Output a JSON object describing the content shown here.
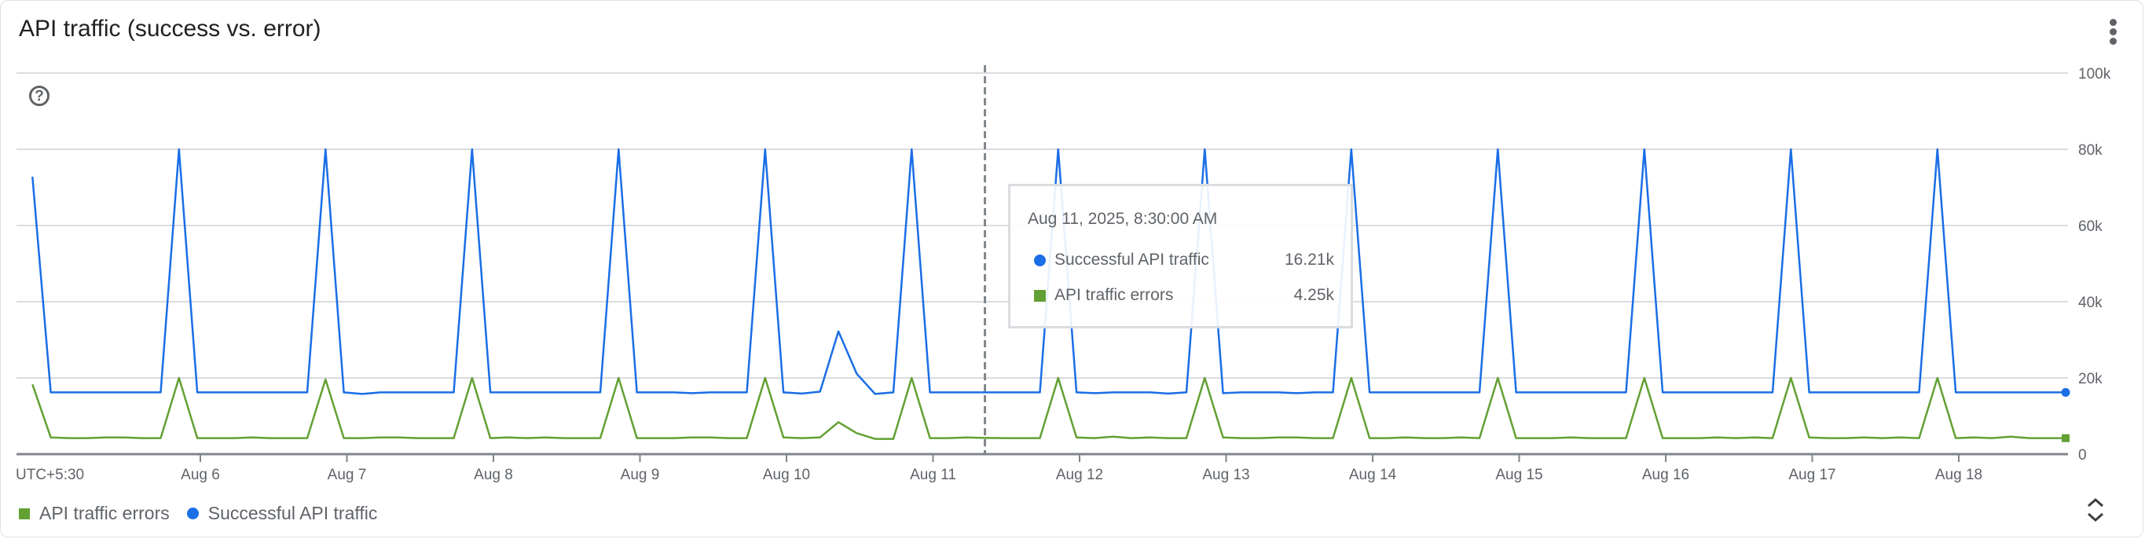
{
  "header": {
    "title": "API traffic (success vs. error)",
    "menu_icon": "more-vert-icon",
    "help_icon": "help-circle-icon"
  },
  "tooltip": {
    "date": "Aug 11, 2025, 8:30:00 AM",
    "rows": [
      {
        "label": "Successful API traffic",
        "value": "16.21k",
        "color": "#1a6ee6"
      },
      {
        "label": "API traffic errors",
        "value": "4.25k",
        "color": "#62a033"
      }
    ]
  },
  "legend": [
    {
      "label": "API traffic errors",
      "color": "#62a033",
      "marker": "square"
    },
    {
      "label": "Successful API traffic",
      "color": "#1a6ee6",
      "marker": "circle"
    }
  ],
  "expand_icon": "unfold-icon",
  "chart_data": {
    "type": "line",
    "title": "API traffic (success vs. error)",
    "timezone_label": "UTC+5:30",
    "x_start": "2025-08-04T20:30",
    "x_step_hours": 3,
    "x_ticks": [
      "Aug 6",
      "Aug 7",
      "Aug 8",
      "Aug 9",
      "Aug 10",
      "Aug 11",
      "Aug 12",
      "Aug 13",
      "Aug 14",
      "Aug 15",
      "Aug 16",
      "Aug 17",
      "Aug 18"
    ],
    "y_ticks": [
      "0",
      "20k",
      "40k",
      "60k",
      "80k",
      "100k"
    ],
    "ylim": [
      0,
      100000
    ],
    "y_axis_side": "right",
    "grid": true,
    "legend_position": "bottom-left",
    "hover_time": "2025-08-11T08:30",
    "series": [
      {
        "name": "Successful API traffic",
        "color": "#1a6ee6",
        "values": [
          72800,
          16200,
          16200,
          16200,
          16200,
          16200,
          16200,
          16200,
          80000,
          16200,
          16200,
          16200,
          16200,
          16200,
          16200,
          16200,
          80000,
          16200,
          15800,
          16200,
          16200,
          16200,
          16200,
          16200,
          80000,
          16200,
          16200,
          16200,
          16200,
          16200,
          16200,
          16200,
          80000,
          16200,
          16200,
          16200,
          16000,
          16200,
          16200,
          16200,
          80000,
          16200,
          15900,
          16400,
          32200,
          21100,
          15800,
          16200,
          80000,
          16200,
          16200,
          16200,
          16210,
          16200,
          16200,
          16200,
          80000,
          16200,
          16000,
          16200,
          16200,
          16200,
          15900,
          16200,
          80000,
          16000,
          16200,
          16200,
          16200,
          16000,
          16200,
          16200,
          80000,
          16200,
          16200,
          16200,
          16200,
          16200,
          16200,
          16200,
          80000,
          16200,
          16200,
          16200,
          16200,
          16200,
          16200,
          16200,
          80000,
          16200,
          16200,
          16200,
          16200,
          16200,
          16200,
          16200,
          80000,
          16200,
          16200,
          16200,
          16200,
          16200,
          16200,
          16200,
          80000,
          16200,
          16200,
          16200,
          16200,
          16200,
          16200,
          16200
        ]
      },
      {
        "name": "API traffic errors",
        "color": "#62a033",
        "values": [
          18300,
          4400,
          4200,
          4200,
          4400,
          4400,
          4200,
          4200,
          20000,
          4200,
          4200,
          4200,
          4400,
          4200,
          4200,
          4200,
          19600,
          4200,
          4200,
          4400,
          4400,
          4200,
          4200,
          4200,
          20000,
          4200,
          4400,
          4200,
          4400,
          4200,
          4200,
          4200,
          20000,
          4200,
          4200,
          4200,
          4400,
          4400,
          4200,
          4200,
          20000,
          4400,
          4200,
          4400,
          8400,
          5500,
          4000,
          4000,
          20000,
          4200,
          4200,
          4400,
          4250,
          4200,
          4200,
          4200,
          20000,
          4400,
          4200,
          4600,
          4200,
          4400,
          4200,
          4200,
          20000,
          4400,
          4200,
          4200,
          4400,
          4400,
          4200,
          4200,
          20000,
          4200,
          4200,
          4400,
          4200,
          4200,
          4400,
          4200,
          20000,
          4200,
          4200,
          4200,
          4400,
          4200,
          4200,
          4200,
          20000,
          4200,
          4200,
          4200,
          4400,
          4200,
          4400,
          4200,
          20000,
          4400,
          4200,
          4200,
          4400,
          4200,
          4400,
          4200,
          20000,
          4200,
          4400,
          4200,
          4600,
          4200,
          4200,
          4200
        ]
      }
    ]
  }
}
